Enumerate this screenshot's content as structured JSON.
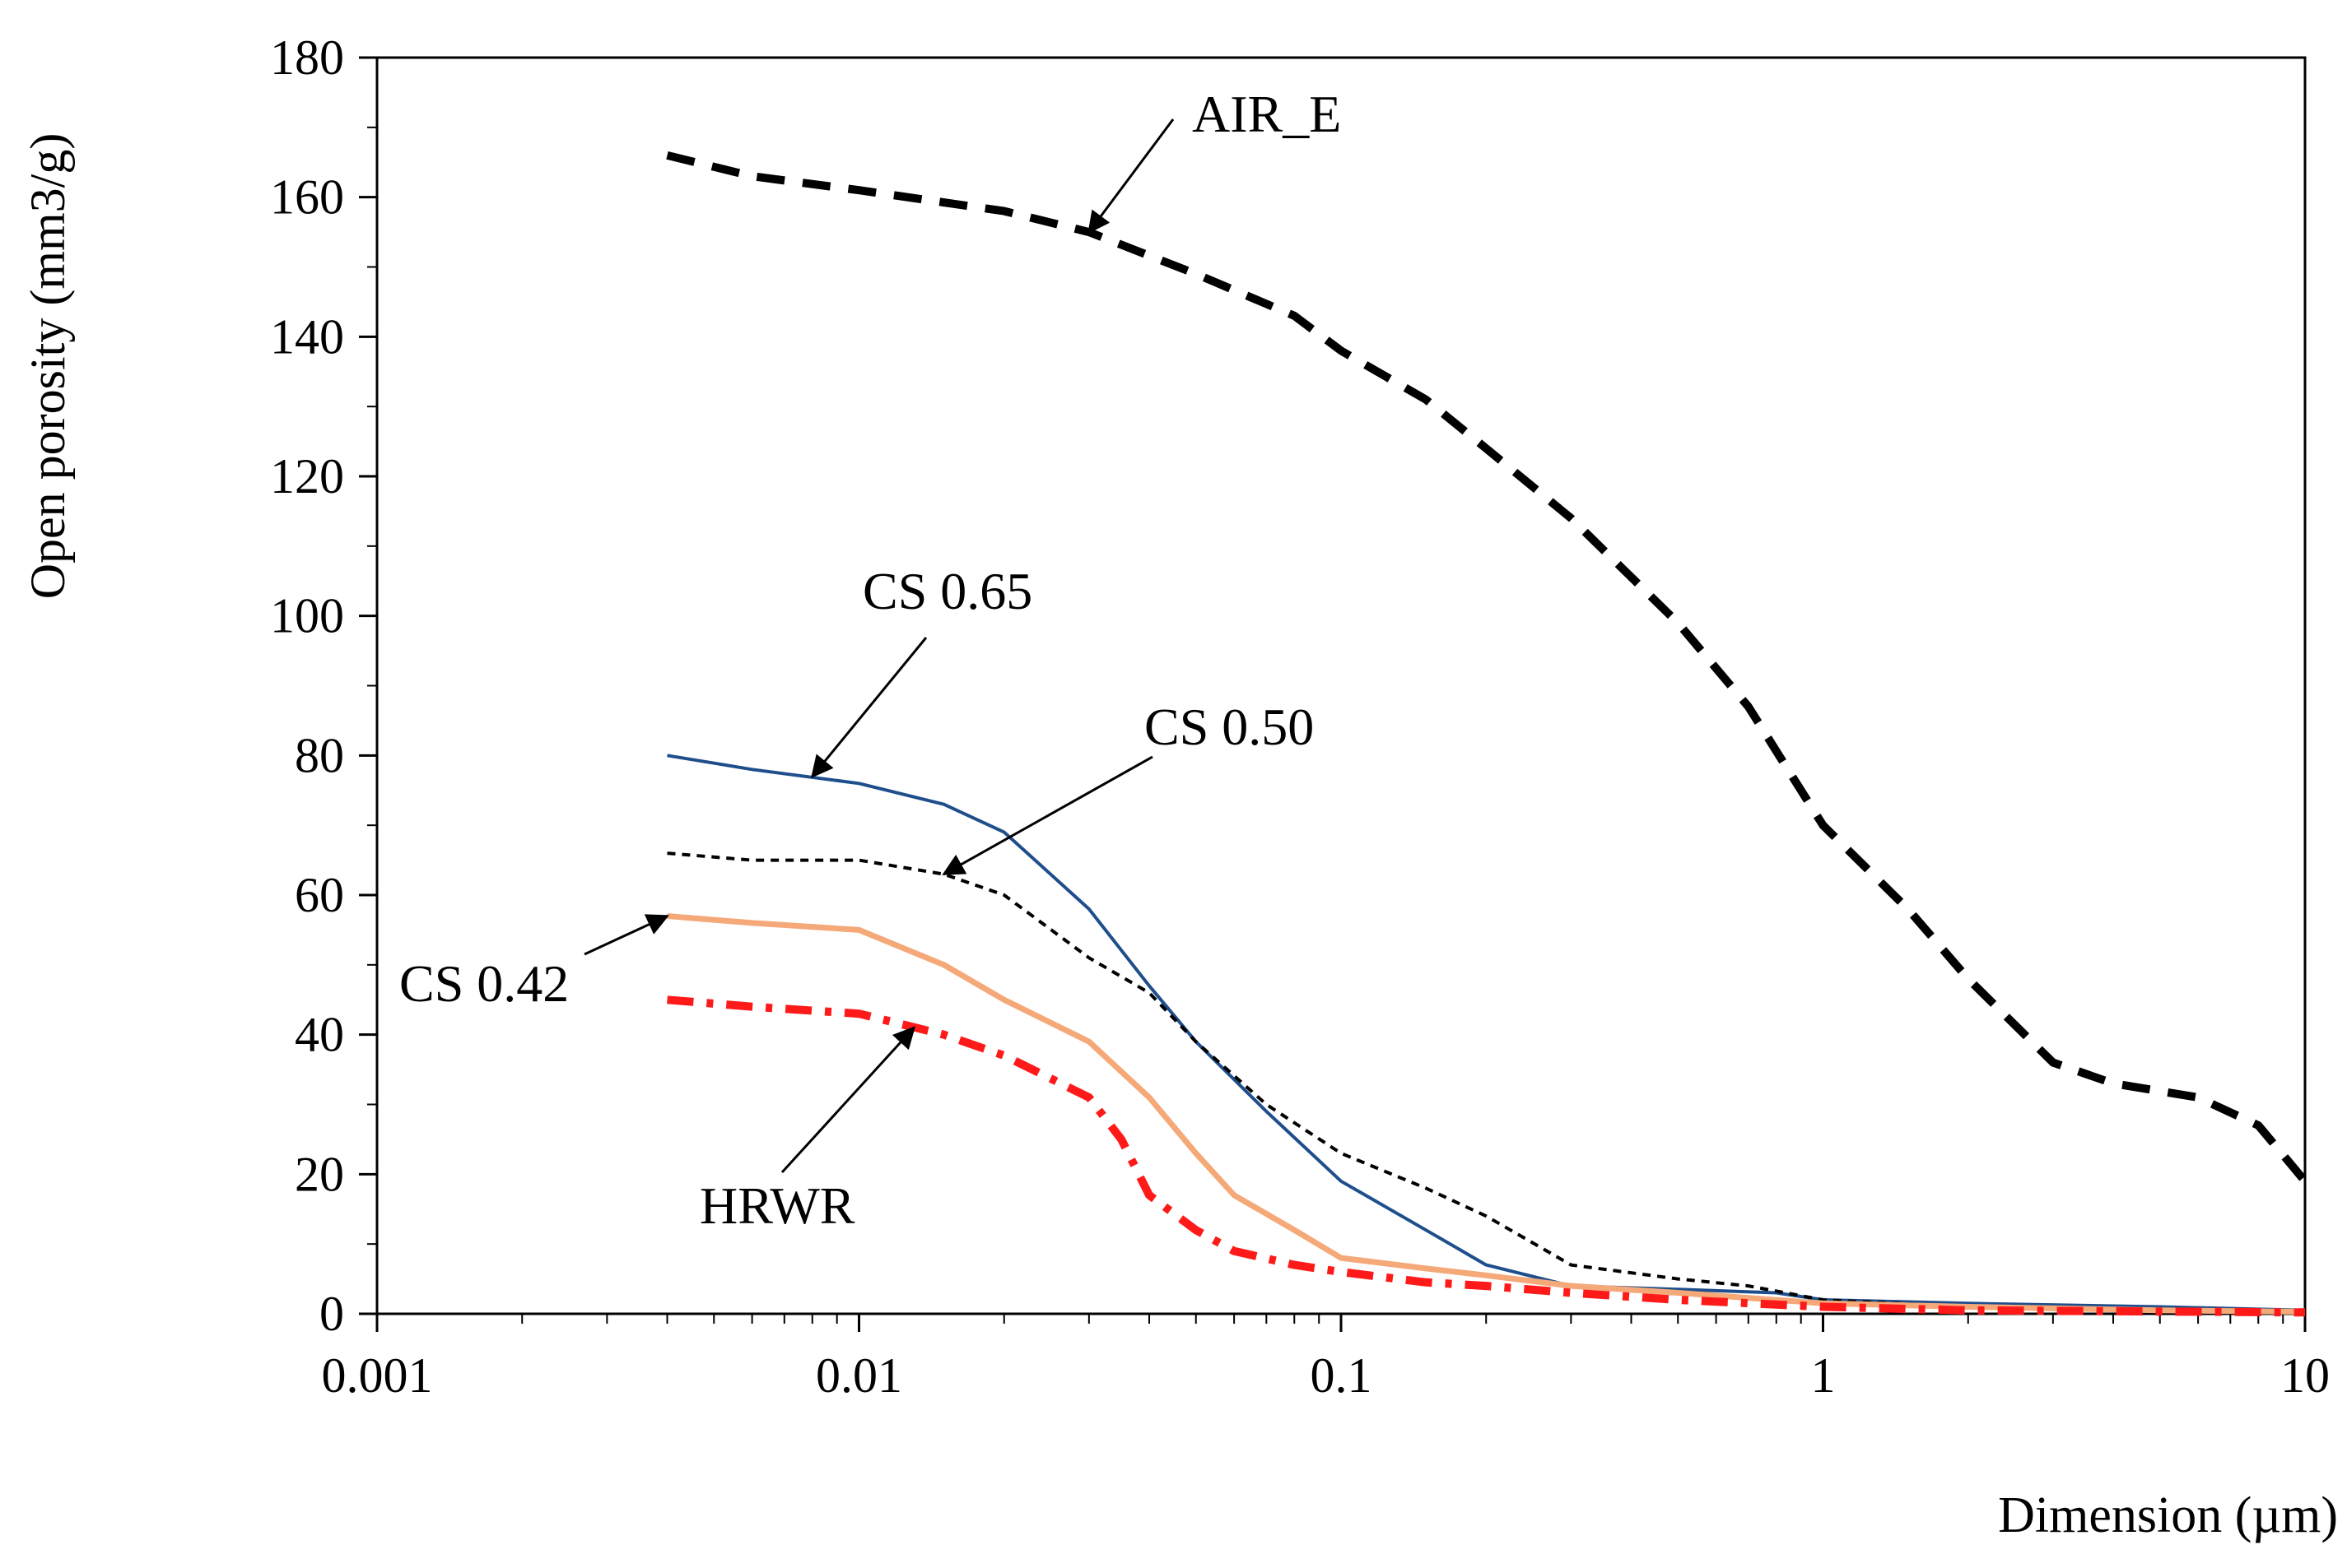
{
  "chart_data": {
    "type": "line",
    "title": "",
    "xlabel": "Dimension (µm)",
    "ylabel": "Open porosity (mm3/g)",
    "xscale": "log",
    "xlim": [
      0.001,
      10
    ],
    "ylim": [
      0,
      180
    ],
    "x_ticks": [
      0.001,
      0.01,
      0.1,
      1,
      10
    ],
    "x_tick_labels": [
      "0.001",
      "0.01",
      "0.1",
      "1",
      "10"
    ],
    "y_ticks": [
      0,
      20,
      40,
      60,
      80,
      100,
      120,
      140,
      160,
      180
    ],
    "y_tick_labels": [
      "0",
      "20",
      "40",
      "60",
      "80",
      "100",
      "120",
      "140",
      "160",
      "180"
    ],
    "grid": false,
    "series": [
      {
        "name": "AIR_E",
        "color": "#000000",
        "style": "dashed-thick",
        "points": [
          [
            0.004,
            166
          ],
          [
            0.006,
            163
          ],
          [
            0.01,
            161
          ],
          [
            0.02,
            158
          ],
          [
            0.03,
            155
          ],
          [
            0.05,
            149
          ],
          [
            0.08,
            143
          ],
          [
            0.1,
            138
          ],
          [
            0.15,
            131
          ],
          [
            0.2,
            124
          ],
          [
            0.3,
            114
          ],
          [
            0.5,
            99
          ],
          [
            0.7,
            87
          ],
          [
            1,
            70
          ],
          [
            1.5,
            58
          ],
          [
            2,
            48
          ],
          [
            3,
            36
          ],
          [
            4,
            33
          ],
          [
            6,
            31
          ],
          [
            8,
            27
          ],
          [
            10,
            19
          ]
        ]
      },
      {
        "name": "CS 0.65",
        "color": "#1f4e8c",
        "style": "solid",
        "points": [
          [
            0.004,
            80
          ],
          [
            0.006,
            78
          ],
          [
            0.01,
            76
          ],
          [
            0.015,
            73
          ],
          [
            0.02,
            69
          ],
          [
            0.03,
            58
          ],
          [
            0.04,
            47
          ],
          [
            0.05,
            39
          ],
          [
            0.07,
            29
          ],
          [
            0.1,
            19
          ],
          [
            0.15,
            12
          ],
          [
            0.2,
            7
          ],
          [
            0.3,
            4
          ],
          [
            0.5,
            3.5
          ],
          [
            0.8,
            3
          ],
          [
            1,
            2
          ],
          [
            2,
            1.5
          ],
          [
            5,
            1
          ],
          [
            10,
            0.5
          ]
        ]
      },
      {
        "name": "CS 0.50",
        "color": "#000000",
        "style": "dotted-fine",
        "points": [
          [
            0.004,
            66
          ],
          [
            0.006,
            65
          ],
          [
            0.01,
            65
          ],
          [
            0.015,
            63
          ],
          [
            0.02,
            60
          ],
          [
            0.03,
            51
          ],
          [
            0.04,
            46
          ],
          [
            0.05,
            39
          ],
          [
            0.07,
            30
          ],
          [
            0.1,
            23
          ],
          [
            0.15,
            18
          ],
          [
            0.2,
            14
          ],
          [
            0.3,
            7
          ],
          [
            0.5,
            5
          ],
          [
            0.7,
            4
          ],
          [
            1,
            2
          ],
          [
            2,
            1
          ],
          [
            5,
            0.5
          ],
          [
            10,
            0.2
          ]
        ]
      },
      {
        "name": "CS 0.42",
        "color": "#f5a878",
        "style": "solid-thick",
        "points": [
          [
            0.004,
            57
          ],
          [
            0.006,
            56
          ],
          [
            0.01,
            55
          ],
          [
            0.015,
            50
          ],
          [
            0.02,
            45
          ],
          [
            0.03,
            39
          ],
          [
            0.04,
            31
          ],
          [
            0.05,
            23
          ],
          [
            0.06,
            17
          ],
          [
            0.08,
            12
          ],
          [
            0.1,
            8
          ],
          [
            0.15,
            6.5
          ],
          [
            0.2,
            5.5
          ],
          [
            0.3,
            4
          ],
          [
            0.5,
            3
          ],
          [
            1,
            1.5
          ],
          [
            2,
            1
          ],
          [
            5,
            0.5
          ],
          [
            10,
            0.3
          ]
        ]
      },
      {
        "name": "HRWR",
        "color": "#ff1a1a",
        "style": "dash-dot-thick",
        "points": [
          [
            0.004,
            45
          ],
          [
            0.006,
            44
          ],
          [
            0.01,
            43
          ],
          [
            0.015,
            40
          ],
          [
            0.02,
            37
          ],
          [
            0.03,
            31
          ],
          [
            0.035,
            25
          ],
          [
            0.04,
            17
          ],
          [
            0.05,
            12
          ],
          [
            0.06,
            9
          ],
          [
            0.08,
            7
          ],
          [
            0.1,
            6
          ],
          [
            0.15,
            4.5
          ],
          [
            0.2,
            4
          ],
          [
            0.3,
            3
          ],
          [
            0.5,
            2
          ],
          [
            1,
            1
          ],
          [
            2,
            0.5
          ],
          [
            10,
            0.2
          ]
        ]
      }
    ],
    "annotations": [
      {
        "text": "AIR_E",
        "series": "AIR_E",
        "arrow_to": [
          0.03,
          155
        ]
      },
      {
        "text": "CS 0.65",
        "series": "CS 0.65",
        "arrow_to": [
          0.008,
          77
        ]
      },
      {
        "text": "CS 0.50",
        "series": "CS 0.50",
        "arrow_to": [
          0.015,
          63
        ]
      },
      {
        "text": "CS 0.42",
        "series": "CS 0.42",
        "arrow_to": [
          0.004,
          57
        ]
      },
      {
        "text": "HRWR",
        "series": "HRWR",
        "arrow_to": [
          0.013,
          41
        ]
      }
    ]
  }
}
